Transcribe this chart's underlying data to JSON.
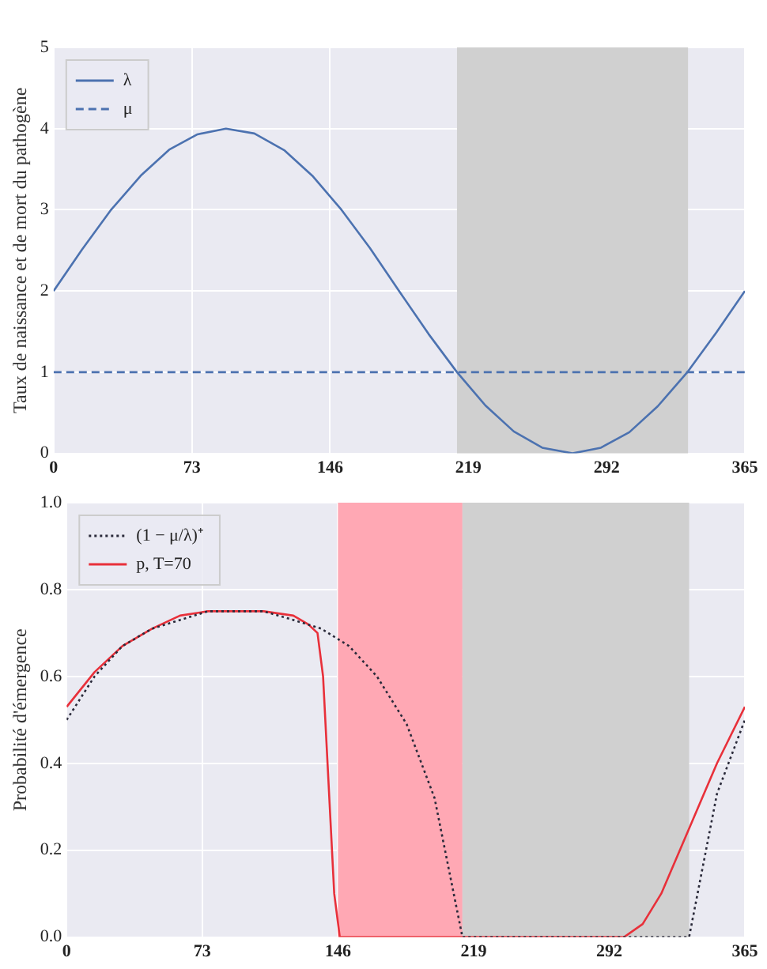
{
  "chart_data": [
    {
      "type": "line",
      "ylabel": "Taux de naissance et de mort du pathogène",
      "xlim": [
        0,
        365
      ],
      "xticks": [
        0,
        73,
        146,
        219,
        292,
        365
      ],
      "ylim": [
        0,
        5
      ],
      "yticks": [
        0,
        1,
        2,
        3,
        4,
        5
      ],
      "grid": true,
      "legend": "top left",
      "marker": "none",
      "series": [
        {
          "name": "λ",
          "color": "#4c72b0",
          "line_style": "solid",
          "x": [
            0,
            15,
            30,
            46,
            61,
            76,
            91,
            106,
            122,
            137,
            152,
            167,
            183,
            198,
            213,
            228,
            243,
            258,
            274,
            289,
            304,
            319,
            335,
            350,
            365
          ],
          "values": [
            2.0,
            2.51,
            2.99,
            3.42,
            3.74,
            3.93,
            4.0,
            3.94,
            3.73,
            3.41,
            3.0,
            2.53,
            1.98,
            1.47,
            1.0,
            0.59,
            0.27,
            0.07,
            0.0,
            0.07,
            0.26,
            0.58,
            1.01,
            1.49,
            2.0
          ]
        },
        {
          "name": "μ",
          "color": "#4c72b0",
          "line_style": "dashed",
          "x": [
            0,
            365
          ],
          "values": [
            1,
            1
          ]
        }
      ],
      "bands": [
        {
          "axis": "x",
          "from": 213,
          "to": 335,
          "color": "#d0d0d0"
        }
      ]
    },
    {
      "type": "line",
      "ylabel": "Probabilité d'émergence",
      "xlim": [
        0,
        365
      ],
      "xticks": [
        0,
        73,
        146,
        219,
        292,
        365
      ],
      "ylim": [
        0,
        1
      ],
      "yticks": [
        {
          "value": 0,
          "label": "0.0"
        },
        0.2,
        0.4,
        0.6,
        0.8,
        {
          "value": 1,
          "label": "1.0"
        }
      ],
      "grid": true,
      "legend": "top left",
      "marker": "none",
      "series": [
        {
          "name": "(1 − μ/λ)⁺",
          "color": "#2a2a3a",
          "line_style": "dotted",
          "x": [
            0,
            15,
            30,
            46,
            61,
            76,
            91,
            106,
            122,
            137,
            152,
            167,
            183,
            198,
            213,
            228,
            243,
            258,
            274,
            289,
            304,
            319,
            335,
            350,
            365
          ],
          "values": [
            0.5,
            0.6,
            0.67,
            0.71,
            0.73,
            0.75,
            0.75,
            0.75,
            0.73,
            0.71,
            0.67,
            0.6,
            0.49,
            0.32,
            0.0,
            0.0,
            0.0,
            0.0,
            0.0,
            0.0,
            0.0,
            0.0,
            0.0,
            0.33,
            0.5
          ]
        },
        {
          "name": "p, T=70",
          "color": "#e8303a",
          "line_style": "solid",
          "x": [
            0,
            15,
            30,
            46,
            61,
            76,
            91,
            106,
            122,
            130,
            135,
            138,
            141,
            144,
            147,
            200,
            250,
            300,
            310,
            320,
            335,
            350,
            365
          ],
          "values": [
            0.53,
            0.61,
            0.67,
            0.71,
            0.74,
            0.75,
            0.75,
            0.75,
            0.74,
            0.72,
            0.7,
            0.6,
            0.35,
            0.1,
            0.0,
            0.0,
            0.0,
            0.0,
            0.03,
            0.1,
            0.25,
            0.4,
            0.53
          ]
        }
      ],
      "bands": [
        {
          "axis": "x",
          "from": 146,
          "to": 213,
          "color": "#ffa8b4"
        },
        {
          "axis": "x",
          "from": 213,
          "to": 335,
          "color": "#d0d0d0"
        }
      ]
    }
  ]
}
